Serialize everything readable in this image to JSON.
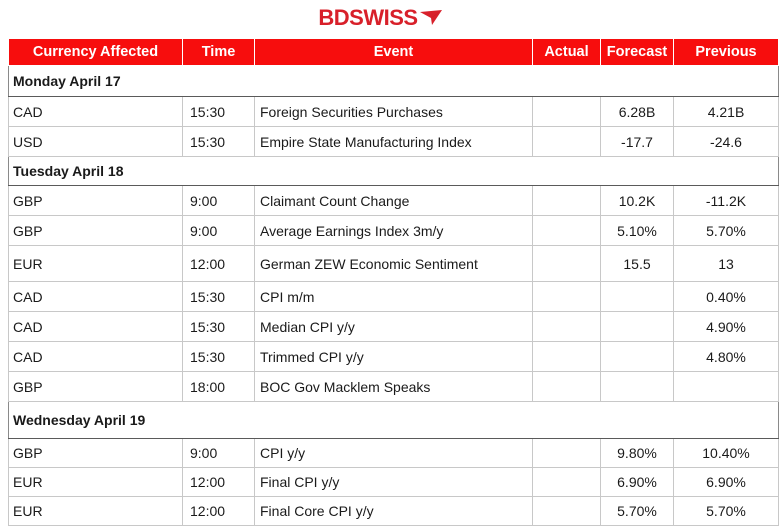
{
  "brand": {
    "logo_text": "BDSWISS"
  },
  "header": {
    "currency": "Currency Affected",
    "time": "Time",
    "event": "Event",
    "actual": "Actual",
    "forecast": "Forecast",
    "previous": "Previous"
  },
  "days": [
    {
      "label": "Monday April 17",
      "rows": [
        {
          "currency": "CAD",
          "time": "15:30",
          "event": "Foreign Securities Purchases",
          "actual": "",
          "forecast": "6.28B",
          "previous": "4.21B"
        },
        {
          "currency": "USD",
          "time": "15:30",
          "event": "Empire State Manufacturing Index",
          "actual": "",
          "forecast": "-17.7",
          "previous": "-24.6"
        }
      ]
    },
    {
      "label": "Tuesday April 18",
      "rows": [
        {
          "currency": "GBP",
          "time": "9:00",
          "event": "Claimant Count Change",
          "actual": "",
          "forecast": "10.2K",
          "previous": "-11.2K"
        },
        {
          "currency": "GBP",
          "time": "9:00",
          "event": "Average Earnings Index 3m/y",
          "actual": "",
          "forecast": "5.10%",
          "previous": "5.70%"
        },
        {
          "currency": "EUR",
          "time": "12:00",
          "event": "German ZEW Economic Sentiment",
          "actual": "",
          "forecast": "15.5",
          "previous": "13"
        },
        {
          "currency": "CAD",
          "time": "15:30",
          "event": "CPI m/m",
          "actual": "",
          "forecast": "",
          "previous": "0.40%"
        },
        {
          "currency": "CAD",
          "time": "15:30",
          "event": "Median CPI y/y",
          "actual": "",
          "forecast": "",
          "previous": "4.90%"
        },
        {
          "currency": "CAD",
          "time": "15:30",
          "event": "Trimmed CPI y/y",
          "actual": "",
          "forecast": "",
          "previous": "4.80%"
        },
        {
          "currency": "GBP",
          "time": "18:00",
          "event": "BOC Gov Macklem Speaks",
          "actual": "",
          "forecast": "",
          "previous": ""
        }
      ]
    },
    {
      "label": "Wednesday April 19",
      "rows": [
        {
          "currency": "GBP",
          "time": "9:00",
          "event": "CPI y/y",
          "actual": "",
          "forecast": "9.80%",
          "previous": "10.40%"
        },
        {
          "currency": "EUR",
          "time": "12:00",
          "event": "Final CPI y/y",
          "actual": "",
          "forecast": "6.90%",
          "previous": "6.90%"
        },
        {
          "currency": "EUR",
          "time": "12:00",
          "event": "Final Core CPI y/y",
          "actual": "",
          "forecast": "5.70%",
          "previous": "5.70%"
        }
      ]
    }
  ],
  "colors": {
    "header_bg": "#f70d0d",
    "brand_red": "#d8202a"
  }
}
